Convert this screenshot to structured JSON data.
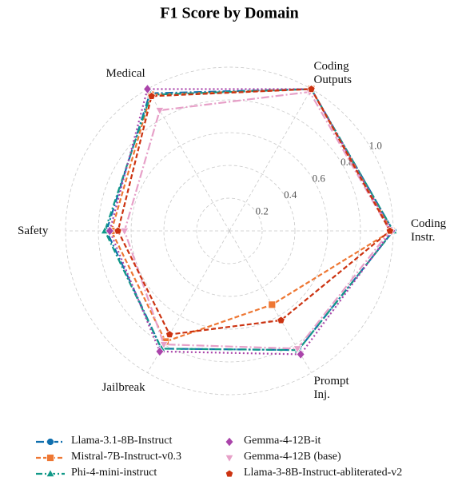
{
  "chart_data": {
    "type": "radar",
    "title": "F1 Score by Domain",
    "categories": [
      "Coding\nInstr.",
      "Coding\nOutputs",
      "Medical",
      "Safety",
      "Jailbreak",
      "Prompt\nInj."
    ],
    "ylim": [
      0,
      1
    ],
    "yticks": [
      0.2,
      0.4,
      0.6,
      0.8,
      {
        "value": 1,
        "label": "1.0"
      }
    ],
    "grid": true,
    "series": [
      {
        "name": "Llama-3.1-8B-Instruct",
        "color": "#0f6fae",
        "marker": "circle",
        "dash": "10 3 2 3",
        "values": [
          1.0,
          1.0,
          0.97,
          0.75,
          0.83,
          0.84
        ]
      },
      {
        "name": "Mistral-7B-Instruct-v0.3",
        "color": "#ee7733",
        "marker": "square",
        "dash": "6 3",
        "values": [
          0.99,
          1.0,
          0.96,
          0.72,
          0.78,
          0.52
        ]
      },
      {
        "name": "Phi-4-mini-instruct",
        "color": "#119988",
        "marker": "triangle-up",
        "dash": "8 3 2 3",
        "values": [
          1.0,
          1.0,
          0.96,
          0.76,
          0.83,
          0.84
        ]
      },
      {
        "name": "Gemma-4-12B-it",
        "color": "#aa44aa",
        "marker": "diamond",
        "dash": "2 3",
        "values": [
          0.99,
          1.0,
          1.0,
          0.73,
          0.85,
          0.87
        ]
      },
      {
        "name": "Gemma-4-12B (base)",
        "color": "#e7a0c8",
        "marker": "triangle-down",
        "dash": "10 3 2 3",
        "values": [
          0.98,
          0.98,
          0.85,
          0.64,
          0.8,
          0.83
        ]
      },
      {
        "name": "Llama-3-8B-Instruct-abliterated-v2",
        "color": "#cc3311",
        "marker": "pentagon",
        "dash": "6 3",
        "values": [
          0.98,
          1.0,
          0.95,
          0.68,
          0.73,
          0.63
        ]
      }
    ]
  }
}
